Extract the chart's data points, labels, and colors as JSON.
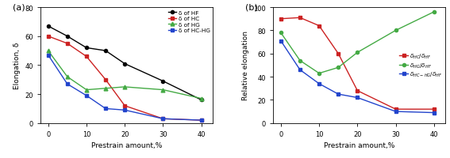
{
  "panel_a": {
    "x": [
      0,
      5,
      10,
      15,
      20,
      30,
      40
    ],
    "HF": [
      67,
      60,
      52,
      50,
      41,
      29,
      16
    ],
    "HC": [
      60,
      55,
      46,
      30,
      12,
      3,
      2
    ],
    "HG": [
      50,
      32,
      23,
      24,
      25,
      23,
      17
    ],
    "HC_HG": [
      47,
      27,
      19,
      10,
      9,
      3,
      2
    ],
    "xlabel": "Prestrain amount,%",
    "ylabel": "Elongation, δ",
    "ylim": [
      0,
      80
    ],
    "yticks": [
      0,
      20,
      40,
      60,
      80
    ],
    "label_HF": "δ of HF",
    "label_HC": "δ of HC",
    "label_HG": "δ of HG",
    "label_HC_HG": "δ of HC-HG",
    "panel_label": "(a)"
  },
  "panel_b": {
    "x": [
      0,
      5,
      10,
      15,
      20,
      30,
      40
    ],
    "HC_HF": [
      90,
      91,
      84,
      60,
      28,
      12,
      12
    ],
    "HG_HF": [
      78,
      54,
      43,
      48,
      61,
      80,
      96
    ],
    "HC_HG_HF": [
      71,
      46,
      34,
      25,
      22,
      10,
      9
    ],
    "xlabel": "Prestrain amount,%",
    "ylabel": "Relative elongation",
    "ylim": [
      0,
      100
    ],
    "yticks": [
      0,
      20,
      40,
      60,
      80,
      100
    ],
    "panel_label": "(b)"
  },
  "colors": {
    "HF": "#000000",
    "HC": "#cc2222",
    "HG": "#44aa44",
    "HC_HG": "#2244cc"
  },
  "xticks": [
    0,
    10,
    20,
    30,
    40
  ],
  "figsize": [
    5.67,
    2.01
  ],
  "dpi": 100
}
